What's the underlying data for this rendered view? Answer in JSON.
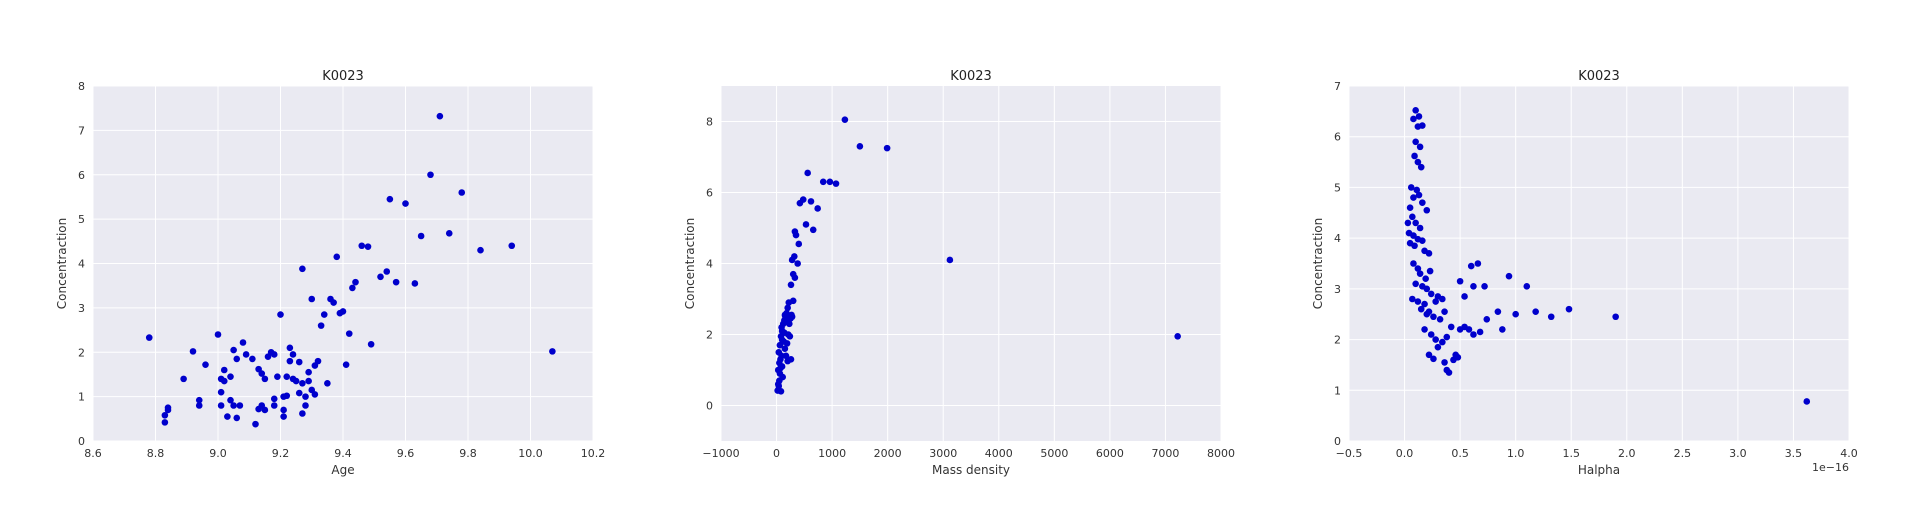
{
  "chart_data": [
    {
      "type": "scatter",
      "title": "K0023",
      "xlabel": "Age",
      "ylabel": "Concentraction",
      "xlim": [
        8.6,
        10.2
      ],
      "ylim": [
        0,
        8
      ],
      "xticks": [
        8.6,
        8.8,
        9.0,
        9.2,
        9.4,
        9.6,
        9.8,
        10.0,
        10.2
      ],
      "xtick_labels": [
        "8.6",
        "8.8",
        "9.0",
        "9.2",
        "9.4",
        "9.6",
        "9.8",
        "10.0",
        "10.2"
      ],
      "yticks": [
        0,
        1,
        2,
        3,
        4,
        5,
        6,
        7,
        8
      ],
      "ytick_labels": [
        "0",
        "1",
        "2",
        "3",
        "4",
        "5",
        "6",
        "7",
        "8"
      ],
      "offset_text": "",
      "grid": true,
      "marker_color": "#0000cc",
      "points": [
        [
          8.78,
          2.33
        ],
        [
          8.83,
          0.42
        ],
        [
          8.83,
          0.58
        ],
        [
          8.84,
          0.75
        ],
        [
          8.84,
          0.7
        ],
        [
          8.89,
          1.4
        ],
        [
          8.92,
          2.02
        ],
        [
          8.94,
          0.8
        ],
        [
          8.94,
          0.92
        ],
        [
          8.96,
          1.72
        ],
        [
          9.0,
          2.4
        ],
        [
          9.01,
          1.4
        ],
        [
          9.01,
          1.1
        ],
        [
          9.01,
          0.8
        ],
        [
          9.02,
          1.35
        ],
        [
          9.02,
          1.6
        ],
        [
          9.03,
          0.55
        ],
        [
          9.04,
          1.45
        ],
        [
          9.04,
          0.92
        ],
        [
          9.05,
          0.8
        ],
        [
          9.05,
          2.05
        ],
        [
          9.06,
          0.52
        ],
        [
          9.06,
          1.85
        ],
        [
          9.07,
          0.8
        ],
        [
          9.08,
          2.22
        ],
        [
          9.09,
          1.95
        ],
        [
          9.11,
          1.85
        ],
        [
          9.12,
          0.38
        ],
        [
          9.13,
          0.72
        ],
        [
          9.13,
          1.62
        ],
        [
          9.14,
          0.8
        ],
        [
          9.14,
          1.52
        ],
        [
          9.15,
          0.7
        ],
        [
          9.15,
          1.4
        ],
        [
          9.16,
          1.9
        ],
        [
          9.17,
          2.0
        ],
        [
          9.18,
          1.95
        ],
        [
          9.18,
          0.95
        ],
        [
          9.18,
          0.8
        ],
        [
          9.19,
          1.45
        ],
        [
          9.2,
          2.85
        ],
        [
          9.21,
          1.0
        ],
        [
          9.21,
          0.7
        ],
        [
          9.21,
          0.55
        ],
        [
          9.22,
          1.45
        ],
        [
          9.22,
          1.02
        ],
        [
          9.23,
          2.1
        ],
        [
          9.23,
          1.8
        ],
        [
          9.24,
          1.95
        ],
        [
          9.24,
          1.4
        ],
        [
          9.25,
          1.35
        ],
        [
          9.26,
          1.78
        ],
        [
          9.26,
          1.08
        ],
        [
          9.27,
          3.88
        ],
        [
          9.27,
          1.3
        ],
        [
          9.27,
          0.62
        ],
        [
          9.28,
          1.0
        ],
        [
          9.28,
          0.8
        ],
        [
          9.29,
          1.55
        ],
        [
          9.29,
          1.35
        ],
        [
          9.3,
          3.2
        ],
        [
          9.3,
          1.15
        ],
        [
          9.31,
          1.7
        ],
        [
          9.31,
          1.05
        ],
        [
          9.32,
          1.8
        ],
        [
          9.33,
          2.6
        ],
        [
          9.34,
          2.85
        ],
        [
          9.35,
          1.3
        ],
        [
          9.36,
          3.2
        ],
        [
          9.37,
          3.12
        ],
        [
          9.38,
          4.15
        ],
        [
          9.39,
          2.88
        ],
        [
          9.4,
          2.92
        ],
        [
          9.41,
          1.72
        ],
        [
          9.42,
          2.42
        ],
        [
          9.43,
          3.45
        ],
        [
          9.44,
          3.58
        ],
        [
          9.46,
          4.4
        ],
        [
          9.48,
          4.38
        ],
        [
          9.49,
          2.18
        ],
        [
          9.52,
          3.7
        ],
        [
          9.54,
          3.82
        ],
        [
          9.55,
          5.45
        ],
        [
          9.57,
          3.58
        ],
        [
          9.6,
          5.35
        ],
        [
          9.63,
          3.55
        ],
        [
          9.65,
          4.62
        ],
        [
          9.68,
          6.0
        ],
        [
          9.71,
          7.32
        ],
        [
          9.74,
          4.68
        ],
        [
          9.78,
          5.6
        ],
        [
          9.84,
          4.3
        ],
        [
          9.94,
          4.4
        ],
        [
          10.07,
          2.02
        ]
      ]
    },
    {
      "type": "scatter",
      "title": "K0023",
      "xlabel": "Mass density",
      "ylabel": "Concentraction",
      "xlim": [
        -1000,
        8000
      ],
      "ylim": [
        -1,
        9
      ],
      "xticks": [
        -1000,
        0,
        1000,
        2000,
        3000,
        4000,
        5000,
        6000,
        7000,
        8000
      ],
      "xtick_labels": [
        "−1000",
        "0",
        "1000",
        "2000",
        "3000",
        "4000",
        "5000",
        "6000",
        "7000",
        "8000"
      ],
      "yticks": [
        0,
        2,
        4,
        6,
        8
      ],
      "ytick_labels": [
        "0",
        "2",
        "4",
        "6",
        "8"
      ],
      "offset_text": "",
      "grid": true,
      "marker_color": "#0000cc",
      "points": [
        [
          20,
          0.42
        ],
        [
          30,
          0.6
        ],
        [
          40,
          0.55
        ],
        [
          50,
          0.7
        ],
        [
          60,
          0.9
        ],
        [
          70,
          1.05
        ],
        [
          80,
          0.4
        ],
        [
          30,
          1.0
        ],
        [
          50,
          1.2
        ],
        [
          70,
          1.3
        ],
        [
          90,
          1.4
        ],
        [
          100,
          1.1
        ],
        [
          110,
          0.8
        ],
        [
          40,
          1.5
        ],
        [
          60,
          1.7
        ],
        [
          80,
          1.95
        ],
        [
          100,
          2.1
        ],
        [
          120,
          2.3
        ],
        [
          140,
          2.4
        ],
        [
          160,
          2.5
        ],
        [
          180,
          2.6
        ],
        [
          200,
          2.75
        ],
        [
          220,
          2.9
        ],
        [
          90,
          2.2
        ],
        [
          130,
          1.8
        ],
        [
          150,
          1.6
        ],
        [
          170,
          1.4
        ],
        [
          190,
          1.75
        ],
        [
          210,
          2.0
        ],
        [
          230,
          2.3
        ],
        [
          250,
          2.45
        ],
        [
          270,
          2.55
        ],
        [
          100,
          1.85
        ],
        [
          140,
          2.05
        ],
        [
          180,
          2.35
        ],
        [
          240,
          1.95
        ],
        [
          260,
          1.3
        ],
        [
          280,
          2.5
        ],
        [
          300,
          2.95
        ],
        [
          260,
          3.4
        ],
        [
          300,
          3.7
        ],
        [
          330,
          3.6
        ],
        [
          280,
          4.1
        ],
        [
          320,
          4.2
        ],
        [
          380,
          4.0
        ],
        [
          350,
          4.8
        ],
        [
          400,
          4.55
        ],
        [
          330,
          4.9
        ],
        [
          420,
          5.7
        ],
        [
          480,
          5.8
        ],
        [
          530,
          5.1
        ],
        [
          560,
          6.55
        ],
        [
          620,
          5.75
        ],
        [
          660,
          4.95
        ],
        [
          740,
          5.55
        ],
        [
          840,
          6.3
        ],
        [
          960,
          6.3
        ],
        [
          1070,
          6.25
        ],
        [
          1230,
          8.05
        ],
        [
          1500,
          7.3
        ],
        [
          1990,
          7.25
        ],
        [
          3120,
          4.1
        ],
        [
          7220,
          1.95
        ],
        [
          150,
          2.55
        ],
        [
          200,
          1.25
        ]
      ]
    },
    {
      "type": "scatter",
      "title": "K0023",
      "xlabel": "Halpha",
      "ylabel": "Concentraction",
      "xlim": [
        -0.5,
        4.0
      ],
      "ylim": [
        0,
        7
      ],
      "xticks": [
        -0.5,
        0.0,
        0.5,
        1.0,
        1.5,
        2.0,
        2.5,
        3.0,
        3.5,
        4.0
      ],
      "xtick_labels": [
        "−0.5",
        "0.0",
        "0.5",
        "1.0",
        "1.5",
        "2.0",
        "2.5",
        "3.0",
        "3.5",
        "4.0"
      ],
      "yticks": [
        0,
        1,
        2,
        3,
        4,
        5,
        6,
        7
      ],
      "ytick_labels": [
        "0",
        "1",
        "2",
        "3",
        "4",
        "5",
        "6",
        "7"
      ],
      "offset_text": "1e−16",
      "grid": true,
      "marker_color": "#0000cc",
      "points": [
        [
          0.1,
          6.52
        ],
        [
          0.08,
          6.35
        ],
        [
          0.13,
          6.4
        ],
        [
          0.12,
          6.2
        ],
        [
          0.16,
          6.22
        ],
        [
          0.1,
          5.9
        ],
        [
          0.14,
          5.8
        ],
        [
          0.12,
          5.5
        ],
        [
          0.09,
          5.62
        ],
        [
          0.15,
          5.4
        ],
        [
          0.06,
          5.0
        ],
        [
          0.11,
          4.95
        ],
        [
          0.13,
          4.85
        ],
        [
          0.08,
          4.8
        ],
        [
          0.16,
          4.7
        ],
        [
          0.2,
          4.55
        ],
        [
          0.05,
          4.6
        ],
        [
          0.07,
          4.42
        ],
        [
          0.03,
          4.3
        ],
        [
          0.1,
          4.3
        ],
        [
          0.14,
          4.2
        ],
        [
          0.04,
          4.1
        ],
        [
          0.08,
          4.05
        ],
        [
          0.12,
          3.98
        ],
        [
          0.16,
          3.95
        ],
        [
          0.05,
          3.9
        ],
        [
          0.09,
          3.85
        ],
        [
          0.18,
          3.75
        ],
        [
          0.22,
          3.7
        ],
        [
          0.08,
          3.5
        ],
        [
          0.12,
          3.4
        ],
        [
          0.14,
          3.3
        ],
        [
          0.19,
          3.2
        ],
        [
          0.23,
          3.35
        ],
        [
          0.1,
          3.1
        ],
        [
          0.16,
          3.05
        ],
        [
          0.2,
          3.0
        ],
        [
          0.24,
          2.9
        ],
        [
          0.3,
          2.85
        ],
        [
          0.07,
          2.8
        ],
        [
          0.12,
          2.75
        ],
        [
          0.18,
          2.7
        ],
        [
          0.28,
          2.75
        ],
        [
          0.34,
          2.8
        ],
        [
          0.15,
          2.6
        ],
        [
          0.22,
          2.55
        ],
        [
          0.2,
          2.5
        ],
        [
          0.26,
          2.45
        ],
        [
          0.32,
          2.4
        ],
        [
          0.36,
          2.55
        ],
        [
          0.18,
          2.2
        ],
        [
          0.24,
          2.1
        ],
        [
          0.28,
          2.0
        ],
        [
          0.34,
          1.95
        ],
        [
          0.38,
          2.05
        ],
        [
          0.3,
          1.85
        ],
        [
          0.22,
          1.7
        ],
        [
          0.26,
          1.62
        ],
        [
          0.36,
          1.55
        ],
        [
          0.38,
          1.4
        ],
        [
          0.4,
          1.35
        ],
        [
          0.44,
          1.6
        ],
        [
          0.46,
          1.7
        ],
        [
          0.48,
          1.65
        ],
        [
          0.42,
          2.25
        ],
        [
          0.5,
          2.2
        ],
        [
          0.54,
          2.25
        ],
        [
          0.58,
          2.2
        ],
        [
          0.62,
          2.1
        ],
        [
          0.68,
          2.15
        ],
        [
          0.74,
          2.4
        ],
        [
          0.84,
          2.55
        ],
        [
          0.88,
          2.2
        ],
        [
          1.0,
          2.5
        ],
        [
          1.18,
          2.55
        ],
        [
          1.32,
          2.45
        ],
        [
          1.48,
          2.6
        ],
        [
          1.9,
          2.45
        ],
        [
          0.5,
          3.15
        ],
        [
          0.54,
          2.85
        ],
        [
          0.6,
          3.45
        ],
        [
          0.66,
          3.5
        ],
        [
          0.62,
          3.05
        ],
        [
          0.72,
          3.05
        ],
        [
          0.94,
          3.25
        ],
        [
          1.1,
          3.05
        ],
        [
          3.62,
          0.78
        ]
      ]
    }
  ]
}
